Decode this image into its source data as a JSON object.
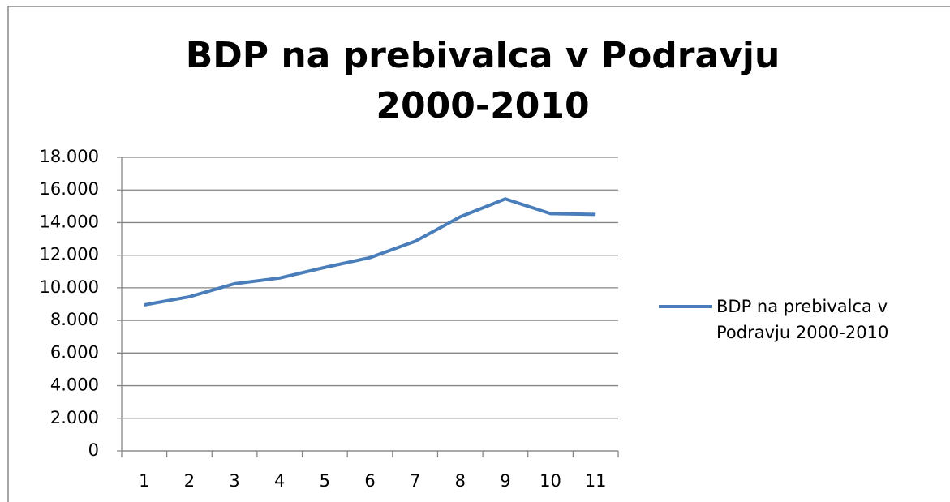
{
  "chart_data": {
    "type": "line",
    "title": "BDP na prebivalca v Podravju 2000-2010",
    "categories": [
      "1",
      "2",
      "3",
      "4",
      "5",
      "6",
      "7",
      "8",
      "9",
      "10",
      "11"
    ],
    "series": [
      {
        "name": "BDP na prebivalca v Podravju 2000-2010",
        "color": "#4a7ebb",
        "values": [
          8950,
          9450,
          10250,
          10600,
          11250,
          11850,
          12850,
          14350,
          15450,
          14550,
          14500
        ]
      }
    ],
    "ylim": [
      0,
      18000
    ],
    "yticks": [
      0,
      {
        "value": 2000,
        "label": "2.000"
      },
      {
        "value": 4000,
        "label": "4.000"
      },
      {
        "value": 6000,
        "label": "6.000"
      },
      {
        "value": 8000,
        "label": "8.000"
      },
      {
        "value": 10000,
        "label": "10.000"
      },
      {
        "value": 12000,
        "label": "12.000"
      },
      {
        "value": 14000,
        "label": "14.000"
      },
      {
        "value": 16000,
        "label": "16.000"
      },
      {
        "value": 18000,
        "label": "18.000"
      }
    ],
    "grid": true,
    "legend": "right"
  }
}
